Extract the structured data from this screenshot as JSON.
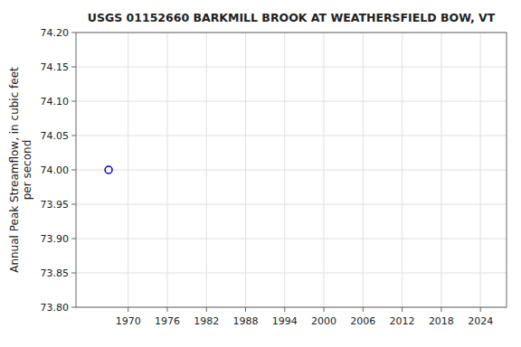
{
  "chart_data": {
    "type": "scatter",
    "title": "USGS 01152660 BARKMILL BROOK AT WEATHERSFIELD BOW, VT",
    "ylabel": "Annual Peak Streamflow, in cubic feet\nper second",
    "x": [
      1967
    ],
    "values": [
      74.0
    ],
    "color": "#0000cc",
    "marker": "circle",
    "xlim": [
      1962,
      2028
    ],
    "ylim": [
      73.8,
      74.2
    ],
    "xticks": [
      1970,
      1976,
      1982,
      1988,
      1994,
      2000,
      2006,
      2012,
      2018,
      2024
    ],
    "yticks": [
      {
        "value": 73.8,
        "label": "73.80"
      },
      {
        "value": 73.85,
        "label": "73.85"
      },
      {
        "value": 73.9,
        "label": "73.90"
      },
      {
        "value": 73.95,
        "label": "73.95"
      },
      {
        "value": 74.0,
        "label": "74.00"
      },
      {
        "value": 74.05,
        "label": "74.05"
      },
      {
        "value": 74.1,
        "label": "74.10"
      },
      {
        "value": 74.15,
        "label": "74.15"
      },
      {
        "value": 74.2,
        "label": "74.20"
      }
    ],
    "grid": true
  }
}
